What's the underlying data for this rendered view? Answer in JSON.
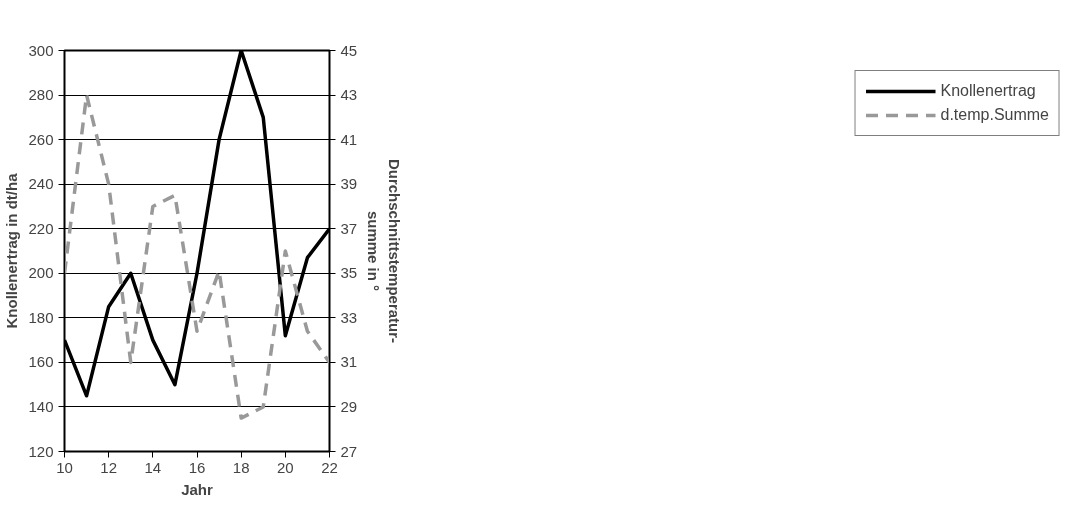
{
  "chart_data": {
    "type": "line",
    "xlabel": "Jahr",
    "ylabel": "Knollenertrag in dt/ha",
    "y2label": "Durchschnittstemperatur-\nsumme in °",
    "x": [
      10,
      11,
      12,
      13,
      14,
      15,
      16,
      17,
      18,
      19,
      20,
      21,
      22
    ],
    "series": [
      {
        "name": "Knollenertrag",
        "color": "#000000",
        "line_style": "solid",
        "values": [
          170,
          145,
          185,
          200,
          170,
          150,
          200,
          260,
          300,
          270,
          172,
          207,
          220
        ]
      },
      {
        "name": "d.temp.Summe",
        "color": "#999999",
        "line_style": "dashed",
        "axis": "y2",
        "values": [
          35,
          43,
          39,
          31,
          38,
          38.5,
          32.4,
          35.1,
          28.5,
          29,
          36,
          32.4,
          31
        ]
      }
    ],
    "xlim": [
      10,
      22
    ],
    "xticks": [
      10,
      12,
      14,
      16,
      18,
      20,
      22
    ],
    "ylim": [
      120,
      300
    ],
    "yticks": [
      120,
      140,
      160,
      180,
      200,
      220,
      240,
      260,
      280,
      300
    ],
    "y2lim": [
      27,
      45
    ],
    "y2ticks": [
      27,
      29,
      31,
      33,
      35,
      37,
      39,
      41,
      43,
      45
    ],
    "grid": "y",
    "legend": "right",
    "marker": "none"
  }
}
